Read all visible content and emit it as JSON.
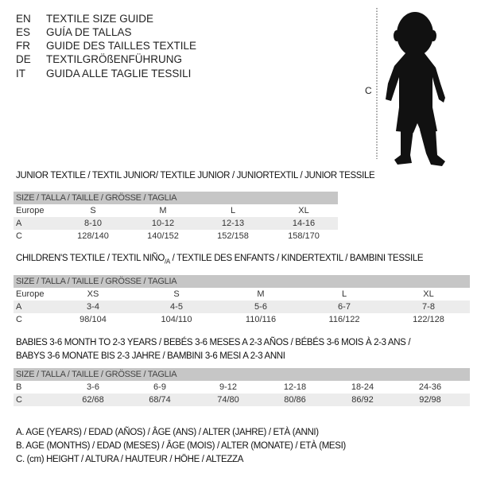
{
  "header": {
    "languages": [
      {
        "code": "EN",
        "text": "TEXTILE SIZE GUIDE"
      },
      {
        "code": "ES",
        "text": "GUÍA DE TALLAS"
      },
      {
        "code": "FR",
        "text": "GUIDE DES TAILLES TEXTILE"
      },
      {
        "code": "DE",
        "text": "TEXTILGRÖßENFÜHRUNG"
      },
      {
        "code": "IT",
        "text": "GUIDA ALLE TAGLIE TESSILI"
      }
    ]
  },
  "figure": {
    "height_label": "C"
  },
  "junior": {
    "title": "JUNIOR TEXTILE / TEXTIL JUNIOR/ TEXTILE JUNIOR / JUNIORTEXTIL / JUNIOR TESSILE",
    "header": "SIZE / TALLA / TAILLE / GRÖSSE / TAGLIA",
    "rows": [
      {
        "label": "Europe",
        "values": [
          "S",
          "M",
          "L",
          "XL"
        ]
      },
      {
        "label": "A",
        "values": [
          "8-10",
          "10-12",
          "12-13",
          "14-16"
        ]
      },
      {
        "label": "C",
        "values": [
          "128/140",
          "140/152",
          "152/158",
          "158/170"
        ]
      }
    ]
  },
  "children": {
    "title_a": "CHILDREN'S TEXTILE / TEXTIL NIÑO",
    "title_sub": "/A",
    "title_b": " / TEXTILE DES ENFANTS / KINDERTEXTIL / BAMBINI TESSILE",
    "header": "SIZE / TALLA / TAILLE / GRÖSSE / TAGLIA",
    "rows": [
      {
        "label": "Europe",
        "values": [
          "XS",
          "S",
          "M",
          "L",
          "XL"
        ]
      },
      {
        "label": "A",
        "values": [
          "3-4",
          "4-5",
          "5-6",
          "6-7",
          "7-8"
        ]
      },
      {
        "label": "C",
        "values": [
          "98/104",
          "104/110",
          "110/116",
          "116/122",
          "122/128"
        ]
      }
    ]
  },
  "babies": {
    "title_line1": "BABIES 3-6 MONTH TO 2-3 YEARS / BEBÉS 3-6 MESES A 2-3 AÑOS / BÉBÉS 3-6 MOIS À 2-3 ANS /",
    "title_line2": "BABYS 3-6 MONATE BIS 2-3 JAHRE / BAMBINI 3-6 MESI A 2-3 ANNI",
    "header": "SIZE / TALLA / TAILLE / GRÖSSE / TAGLIA",
    "rows": [
      {
        "label": "B",
        "values": [
          "3-6",
          "6-9",
          "9-12",
          "12-18",
          "18-24",
          "24-36"
        ]
      },
      {
        "label": "C",
        "values": [
          "62/68",
          "68/74",
          "74/80",
          "80/86",
          "86/92",
          "92/98"
        ]
      }
    ]
  },
  "legend": [
    "A. AGE (YEARS) / EDAD (AÑOS) / ÂGE (ANS) / ALTER (JAHRE) / ETÀ (ANNI)",
    "B. AGE (MONTHS) / EDAD (MESES) / ÂGE (MOIS) / ALTER (MONATE) / ETÀ (MESI)",
    "C. (cm) HEIGHT / ALTURA / HAUTEUR / HÖHE / ALTEZZA"
  ]
}
